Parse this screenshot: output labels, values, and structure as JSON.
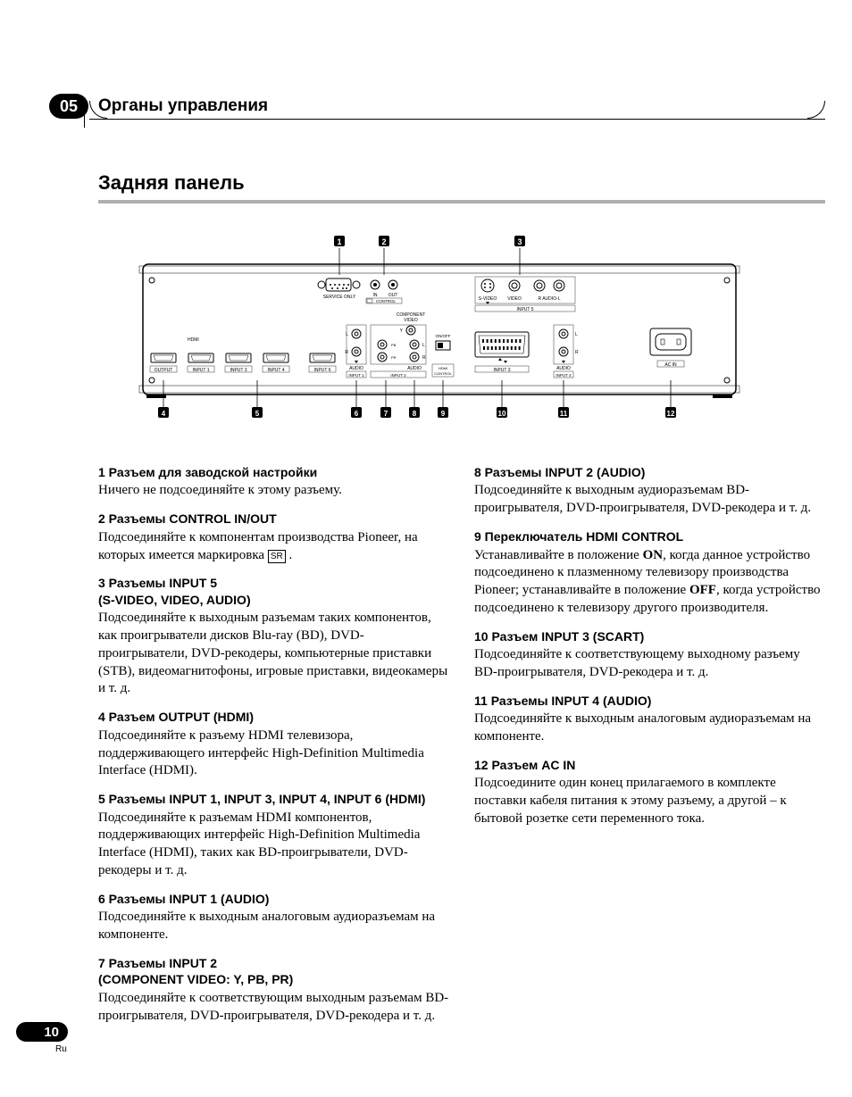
{
  "chapter": {
    "number": "05",
    "title": "Органы управления"
  },
  "section": {
    "title": "Задняя панель"
  },
  "diagram": {
    "callouts_top": [
      "1",
      "2",
      "3"
    ],
    "callouts_bottom": [
      "4",
      "5",
      "6",
      "7",
      "8",
      "9",
      "10",
      "11",
      "12"
    ],
    "labels": {
      "service": "SERVICE ONLY",
      "control_in": "IN",
      "control_out": "OUT",
      "control": "CONTROL",
      "svideo": "S-VIDEO",
      "video": "VIDEO",
      "raudio": "R AUDIO-L",
      "input5": "INPUT 5",
      "comp_video": "COMPONENT\nVIDEO",
      "hdmi": "HDMI",
      "output": "OUTPUT",
      "input1": "INPUT 1",
      "input3": "INPUT 3",
      "input4": "INPUT 4",
      "input6": "INPUT 6",
      "audio": "AUDIO",
      "input1b": "INPUT 1",
      "pb": "PB",
      "pr": "PR",
      "input2": "INPUT 2",
      "onoff": "ON/OFF",
      "hdmi_control": "HDMI\nCONTROL",
      "input3s": "INPUT 3",
      "input4a": "INPUT 4",
      "acin": "AC IN",
      "L": "L",
      "R": "R",
      "Y": "Y"
    }
  },
  "left_items": [
    {
      "num": "1",
      "title": "Разъем для заводской настройки",
      "body": "Ничего не подсоединяйте к этому разъему."
    },
    {
      "num": "2",
      "title": "Разъемы CONTROL IN/OUT",
      "body": "Подсоединяйте к компонентам производства Pioneer, на которых имеется маркировка ",
      "sr": true,
      "body2": " ."
    },
    {
      "num": "3",
      "title": "Разъемы INPUT 5",
      "title2": "(S-VIDEO, VIDEO, AUDIO)",
      "body": "Подсоединяйте к выходным разъемам таких компонентов, как проигрыватели дисков Blu-ray (BD), DVD-проигрыватели, DVD-рекодеры, компьютерные приставки (STB), видеомагнитофоны, игровые приставки, видеокамеры и т. д."
    },
    {
      "num": "4",
      "title": "Разъем OUTPUT (HDMI)",
      "body": "Подсоединяйте к разъему HDMI телевизора, поддерживающего интерфейс High-Definition Multimedia Interface (HDMI)."
    },
    {
      "num": "5",
      "title": "Разъемы INPUT 1, INPUT 3, INPUT 4, INPUT 6 (HDMI)",
      "body": "Подсоединяйте к разъемам HDMI компонентов, поддерживающих интерфейс High-Definition Multimedia Interface (HDMI), таких как BD-проигрыватели, DVD-рекодеры и т. д."
    },
    {
      "num": "6",
      "title": "Разъемы INPUT 1 (AUDIO)",
      "body": "Подсоединяйте к выходным аналоговым аудиоразъемам на компоненте."
    },
    {
      "num": "7",
      "title": "Разъемы INPUT 2",
      "title2": "(COMPONENT VIDEO: Y, PB, PR)",
      "body": "Подсоединяйте к соответствующим выходным разъемам BD-проигрывателя, DVD-проигрывателя, DVD-рекодера и т. д."
    }
  ],
  "right_items": [
    {
      "num": "8",
      "title": "Разъемы INPUT 2 (AUDIO)",
      "body": "Подсоединяйте к выходным аудиоразъемам BD-проигрывателя, DVD-проигрывателя, DVD-рекодера и т. д."
    },
    {
      "num": "9",
      "title": "Переключатель HDMI CONTROL",
      "body_html": "Устанавливайте в положение <b>ON</b>, когда данное устройство подсоединено к плазменному телевизору производства Pioneer; устанавливайте в положение <b>OFF</b>, когда устройство подсоединено к телевизору другого производителя."
    },
    {
      "num": "10",
      "title": "Разъем INPUT 3 (SCART)",
      "body": "Подсоединяйте к соответствующему выходному разъему BD-проигрывателя, DVD-рекодера и т. д."
    },
    {
      "num": "11",
      "title": "Разъемы INPUT 4 (AUDIO)",
      "body": "Подсоединяйте к выходным аналоговым аудиоразъемам на компоненте."
    },
    {
      "num": "12",
      "title": "Разъем AC IN",
      "body": "Подсоедините один конец прилагаемого в комплекте поставки кабеля питания к этому разъему, а другой – к бытовой розетке сети переменного тока."
    }
  ],
  "page_number": "10",
  "lang": "Ru"
}
